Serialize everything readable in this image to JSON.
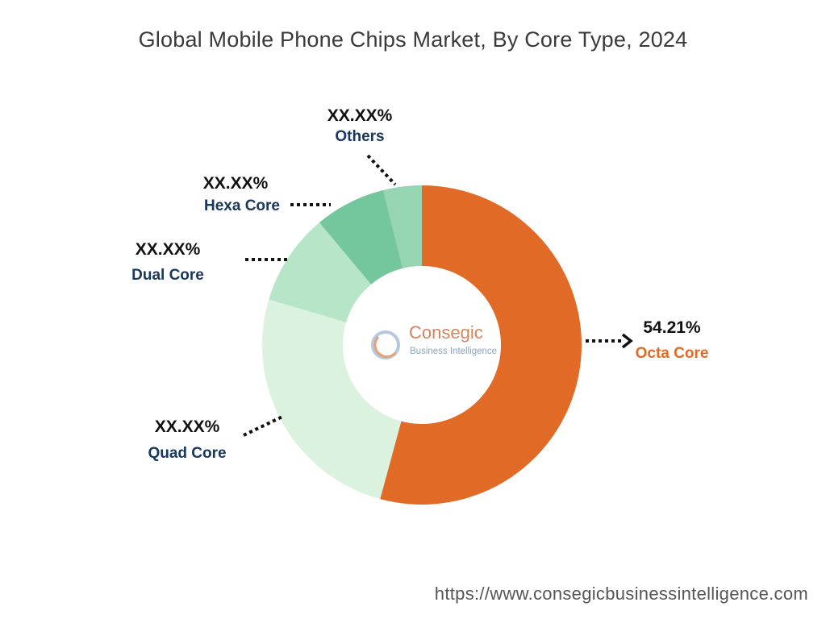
{
  "chart_data": {
    "type": "pie",
    "variant": "donut",
    "title": "Global Mobile Phone Chips Market, By Core Type, 2024",
    "slices": [
      {
        "label": "Octa Core",
        "value": 54.21,
        "display": "54.21%",
        "color": "#e26a27"
      },
      {
        "label": "Quad Core",
        "value": 25.4,
        "display": "XX.XX%",
        "color": "#dbf3de"
      },
      {
        "label": "Dual Core",
        "value": 9.3,
        "display": "XX.XX%",
        "color": "#b6e5c8"
      },
      {
        "label": "Hexa Core",
        "value": 7.2,
        "display": "XX.XX%",
        "color": "#74c69d"
      },
      {
        "label": "Others",
        "value": 3.89,
        "display": "XX.XX%",
        "color": "#95d5b2"
      }
    ]
  },
  "logo": {
    "name": "Consegic",
    "tagline": "Business Intelligence"
  },
  "footer": {
    "url": "https://www.consegicbusinessintelligence.com"
  }
}
